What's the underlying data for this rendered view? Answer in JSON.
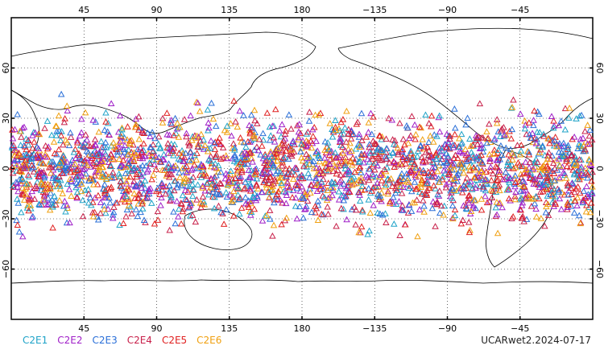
{
  "map": {
    "lon_labels": [
      "45",
      "90",
      "135",
      "180",
      "−135",
      "−90",
      "−45"
    ],
    "lat_labels_left": [
      "60",
      "30",
      "0",
      "−30",
      "−60"
    ],
    "lat_labels_right": [
      "60",
      "30",
      "0",
      "−30",
      "−60"
    ],
    "lat_max_observed": 45,
    "lat_min_observed": -45,
    "marker_shape": "open-triangle"
  },
  "legend": [
    {
      "label": "C2E1",
      "color": "#1fa3c8"
    },
    {
      "label": "C2E2",
      "color": "#a020c8"
    },
    {
      "label": "C2E3",
      "color": "#2a6fd8"
    },
    {
      "label": "C2E4",
      "color": "#c8204a"
    },
    {
      "label": "C2E5",
      "color": "#e02020"
    },
    {
      "label": "C2E6",
      "color": "#f0a010"
    }
  ],
  "caption": "UCARwet2.2024-07-17"
}
